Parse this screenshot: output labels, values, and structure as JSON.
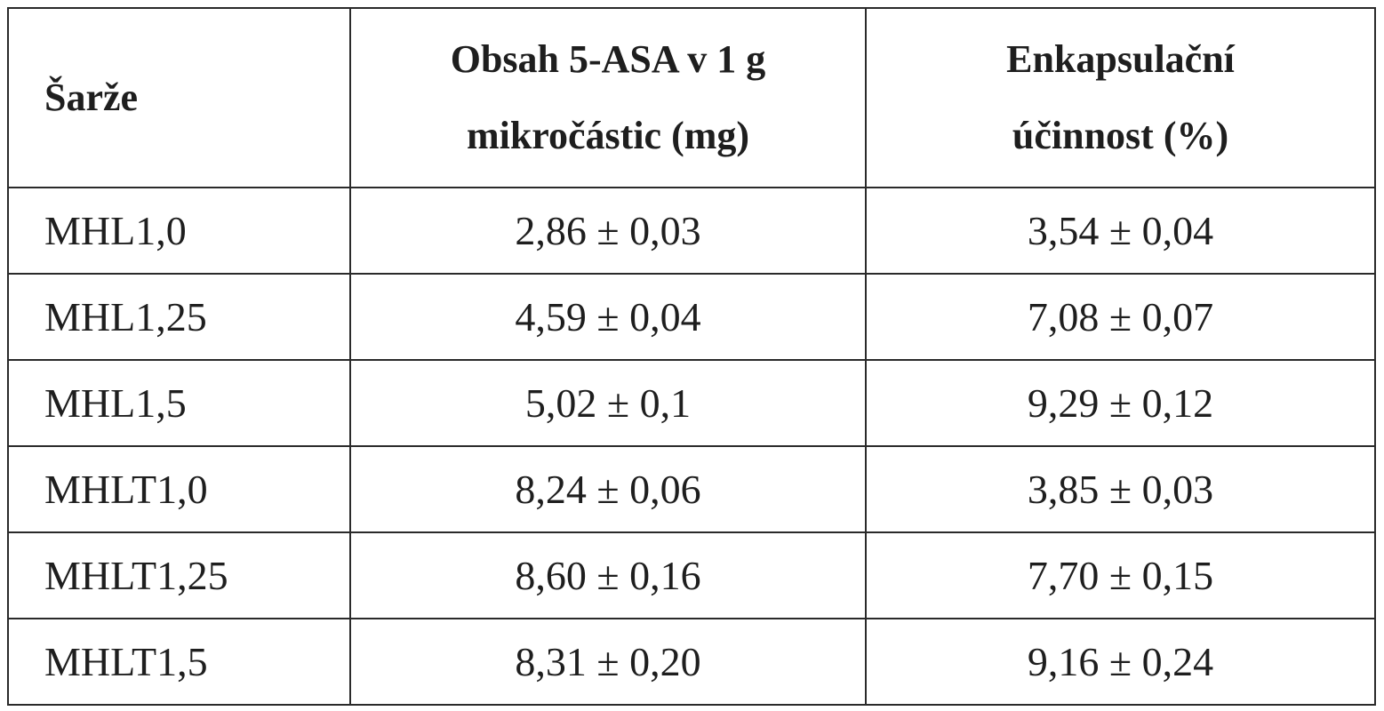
{
  "table": {
    "headers": [
      {
        "lines": [
          "Šarže"
        ]
      },
      {
        "lines": [
          "Obsah 5-ASA v 1 g",
          "mikročástic (mg)"
        ]
      },
      {
        "lines": [
          "Enkapsulační",
          "účinnost (%)"
        ]
      }
    ],
    "rows": [
      {
        "batch": "MHL1,0",
        "content": "2,86 ± 0,03",
        "efficiency": "3,54 ± 0,04"
      },
      {
        "batch": "MHL1,25",
        "content": "4,59 ± 0,04",
        "efficiency": "7,08 ± 0,07"
      },
      {
        "batch": "MHL1,5",
        "content": "5,02 ± 0,1",
        "efficiency": "9,29 ± 0,12"
      },
      {
        "batch": "MHLT1,0",
        "content": "8,24 ± 0,06",
        "efficiency": "3,85 ± 0,03"
      },
      {
        "batch": "MHLT1,25",
        "content": "8,60 ± 0,16",
        "efficiency": "7,70 ± 0,15"
      },
      {
        "batch": "MHLT1,5",
        "content": "8,31 ± 0,20",
        "efficiency": "9,16 ± 0,24"
      }
    ]
  }
}
